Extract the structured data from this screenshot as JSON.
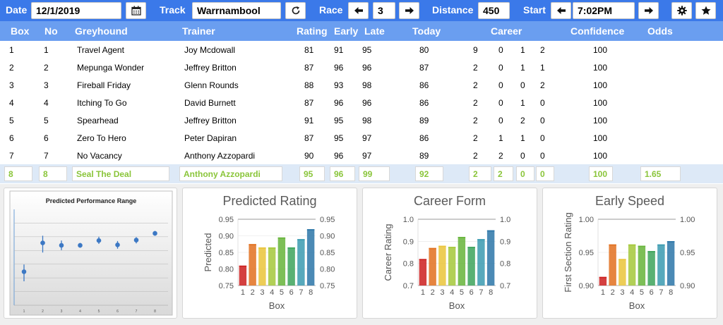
{
  "toolbar": {
    "date_label": "Date",
    "date_value": "12/1/2019",
    "track_label": "Track",
    "track_value": "Warrnambool",
    "race_label": "Race",
    "race_value": "3",
    "distance_label": "Distance",
    "distance_value": "450",
    "start_label": "Start",
    "start_value": "7:02PM",
    "icons": [
      "calendar-icon",
      "refresh-icon",
      "arrow-left-icon",
      "arrow-right-icon",
      "gear-icon",
      "star-icon"
    ]
  },
  "columns": [
    "Box",
    "No",
    "Greyhound",
    "Trainer",
    "Rating",
    "Early",
    "Late",
    "Today",
    "Career",
    "Confidence",
    "Odds"
  ],
  "rows": [
    {
      "box": "1",
      "no": "1",
      "dog": "Travel Agent",
      "trainer": "Joy Mcdowall",
      "rating": "81",
      "early": "91",
      "late": "95",
      "today": "80",
      "c1": "9",
      "c2": "0",
      "c3": "1",
      "c4": "2",
      "conf": "100",
      "odds": ""
    },
    {
      "box": "2",
      "no": "2",
      "dog": "Mepunga Wonder",
      "trainer": "Jeffrey Britton",
      "rating": "87",
      "early": "96",
      "late": "96",
      "today": "87",
      "c1": "2",
      "c2": "0",
      "c3": "1",
      "c4": "1",
      "conf": "100",
      "odds": ""
    },
    {
      "box": "3",
      "no": "3",
      "dog": "Fireball Friday",
      "trainer": "Glenn Rounds",
      "rating": "88",
      "early": "93",
      "late": "98",
      "today": "86",
      "c1": "2",
      "c2": "0",
      "c3": "0",
      "c4": "2",
      "conf": "100",
      "odds": ""
    },
    {
      "box": "4",
      "no": "4",
      "dog": "Itching To Go",
      "trainer": "David Burnett",
      "rating": "87",
      "early": "96",
      "late": "96",
      "today": "86",
      "c1": "2",
      "c2": "0",
      "c3": "1",
      "c4": "0",
      "conf": "100",
      "odds": ""
    },
    {
      "box": "5",
      "no": "5",
      "dog": "Spearhead",
      "trainer": "Jeffrey Britton",
      "rating": "91",
      "early": "95",
      "late": "98",
      "today": "89",
      "c1": "2",
      "c2": "0",
      "c3": "2",
      "c4": "0",
      "conf": "100",
      "odds": ""
    },
    {
      "box": "6",
      "no": "6",
      "dog": "Zero To Hero",
      "trainer": "Peter Dapiran",
      "rating": "87",
      "early": "95",
      "late": "97",
      "today": "86",
      "c1": "2",
      "c2": "1",
      "c3": "1",
      "c4": "0",
      "conf": "100",
      "odds": ""
    },
    {
      "box": "7",
      "no": "7",
      "dog": "No Vacancy",
      "trainer": "Anthony Azzopardi",
      "rating": "90",
      "early": "96",
      "late": "97",
      "today": "89",
      "c1": "2",
      "c2": "2",
      "c3": "0",
      "c4": "0",
      "conf": "100",
      "odds": ""
    }
  ],
  "selected_row": {
    "box": "8",
    "no": "8",
    "dog": "Seal The Deal",
    "trainer": "Anthony Azzopardi",
    "rating": "95",
    "early": "96",
    "late": "99",
    "today": "92",
    "c1": "2",
    "c2": "2",
    "c3": "0",
    "c4": "0",
    "conf": "100",
    "odds": "1.65"
  },
  "chart_data": [
    {
      "type": "scatter",
      "title": "Predicted Performance Range",
      "x": [
        1,
        2,
        3,
        4,
        5,
        6,
        7,
        8
      ],
      "values": [
        0.82,
        0.88,
        0.875,
        0.875,
        0.885,
        0.876,
        0.886,
        0.9
      ],
      "error_low": [
        0.8,
        0.86,
        0.865,
        0.87,
        0.878,
        0.868,
        0.879,
        0.895
      ],
      "error_high": [
        0.835,
        0.895,
        0.885,
        0.88,
        0.893,
        0.884,
        0.892,
        0.905
      ],
      "ylim": [
        0.75,
        0.95
      ],
      "grid": true,
      "marker_color": "#3c78c4"
    },
    {
      "type": "bar",
      "title": "Predicted Rating",
      "categories": [
        "1",
        "2",
        "3",
        "4",
        "5",
        "6",
        "7",
        "8"
      ],
      "values": [
        0.81,
        0.875,
        0.865,
        0.865,
        0.895,
        0.865,
        0.89,
        0.92
      ],
      "xlabel": "Box",
      "ylabel": "Predicted",
      "yticks": [
        "0.75",
        "0.80",
        "0.85",
        "0.90",
        "0.95"
      ],
      "ylim": [
        0.75,
        0.95
      ]
    },
    {
      "type": "bar",
      "title": "Career Form",
      "categories": [
        "1",
        "2",
        "3",
        "4",
        "5",
        "6",
        "7",
        "8"
      ],
      "values": [
        0.82,
        0.87,
        0.88,
        0.875,
        0.92,
        0.875,
        0.91,
        0.95
      ],
      "xlabel": "Box",
      "ylabel": "Career Rating",
      "yticks": [
        "0.7",
        "0.8",
        "0.9",
        "1.0"
      ],
      "ylim": [
        0.7,
        1.0
      ]
    },
    {
      "type": "bar",
      "title": "Early Speed",
      "categories": [
        "1",
        "2",
        "3",
        "4",
        "5",
        "6",
        "7",
        "8"
      ],
      "values": [
        0.913,
        0.962,
        0.94,
        0.962,
        0.96,
        0.952,
        0.962,
        0.967
      ],
      "xlabel": "Box",
      "ylabel": "First Section Rating",
      "yticks": [
        "0.90",
        "0.95",
        "1.00"
      ],
      "ylim": [
        0.9,
        1.0
      ]
    }
  ],
  "colors": {
    "toolbar_bg": "#3b79e9",
    "header_bg": "#6a9ef0",
    "selected_text": "#8ac53a",
    "bars": [
      "#cc1f1f",
      "#e2701f",
      "#eac43a",
      "#a5c83a",
      "#66b43a",
      "#3ca35a",
      "#3a9ab0",
      "#2c75a8"
    ]
  }
}
